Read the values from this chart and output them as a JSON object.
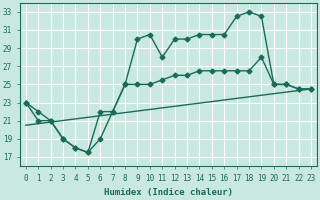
{
  "xlabel": "Humidex (Indice chaleur)",
  "xlim": [
    -0.5,
    23.5
  ],
  "ylim": [
    16,
    34
  ],
  "xticks": [
    0,
    1,
    2,
    3,
    4,
    5,
    6,
    7,
    8,
    9,
    10,
    11,
    12,
    13,
    14,
    15,
    16,
    17,
    18,
    19,
    20,
    21,
    22,
    23
  ],
  "yticks": [
    17,
    19,
    21,
    23,
    25,
    27,
    29,
    31,
    33
  ],
  "bg_color": "#c8e8e0",
  "line_color": "#1a6b5a",
  "grid_color": "#ffffff",
  "line1_x": [
    0,
    1,
    2,
    3,
    4,
    5,
    6,
    7,
    8,
    9,
    10,
    11,
    12,
    13,
    14,
    15,
    16,
    17,
    18,
    19,
    20,
    21,
    22,
    23
  ],
  "line1_y": [
    23,
    21,
    21,
    19,
    18,
    17.5,
    19,
    22,
    25,
    25,
    25,
    25.5,
    26,
    26,
    26.5,
    26.5,
    26.5,
    26.5,
    26.5,
    28,
    25,
    25,
    24.5,
    24.5
  ],
  "line2_x": [
    0,
    1,
    2,
    3,
    4,
    5,
    6,
    7,
    8,
    9,
    10,
    11,
    12,
    13,
    14,
    15,
    16,
    17,
    18,
    19,
    20,
    21,
    22,
    23
  ],
  "line2_y": [
    23,
    22,
    21,
    19,
    18,
    17.5,
    22,
    22,
    25,
    30,
    30.5,
    28,
    30,
    30,
    30.5,
    30.5,
    30.5,
    32.5,
    33,
    32.5,
    25,
    25,
    24.5,
    24.5
  ],
  "line3_x": [
    0,
    23
  ],
  "line3_y": [
    20.5,
    24.5
  ],
  "marker": "D",
  "marker_size": 2.5,
  "linewidth": 1.0
}
